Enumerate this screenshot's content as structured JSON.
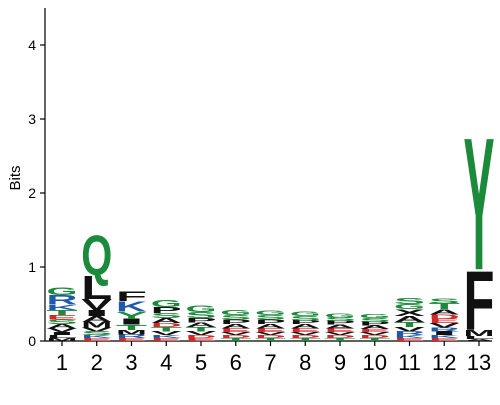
{
  "chart_data": {
    "type": "sequence-logo",
    "title": "",
    "xlabel": "",
    "ylabel": "Bits",
    "ylim": [
      0,
      4.5
    ],
    "yticks": [
      "0",
      "1",
      "2",
      "3",
      "4"
    ],
    "colors": {
      "green": "#1b8a3a",
      "black": "#111111",
      "blue": "#1f5aa8",
      "red": "#d62728",
      "axis": "#000000"
    },
    "residue_colors": {
      "A": "black",
      "V": "black",
      "L": "black",
      "I": "black",
      "P": "black",
      "W": "black",
      "F": "black",
      "M": "black",
      "G": "green",
      "S": "green",
      "T": "green",
      "Y": "green",
      "C": "green",
      "Q": "green",
      "N": "green",
      "K": "blue",
      "R": "blue",
      "H": "blue",
      "D": "red",
      "E": "red"
    },
    "positions": [
      {
        "label": "1",
        "stack": [
          [
            "M",
            0.04
          ],
          [
            "L",
            0.04
          ],
          [
            "I",
            0.04
          ],
          [
            "V",
            0.05
          ],
          [
            "A",
            0.06
          ],
          [
            "S",
            0.06
          ],
          [
            "E",
            0.06
          ],
          [
            "T",
            0.07
          ],
          [
            "K",
            0.07
          ],
          [
            "R",
            0.13
          ],
          [
            "G",
            0.11
          ]
        ]
      },
      {
        "label": "2",
        "stack": [
          [
            "E",
            0.04
          ],
          [
            "K",
            0.04
          ],
          [
            "S",
            0.05
          ],
          [
            "V",
            0.05
          ],
          [
            "M",
            0.08
          ],
          [
            "A",
            0.08
          ],
          [
            "I",
            0.08
          ],
          [
            "V",
            0.15
          ],
          [
            "L",
            0.32
          ],
          [
            "Q",
            0.55
          ]
        ]
      },
      {
        "label": "3",
        "stack": [
          [
            "E",
            0.04
          ],
          [
            "R",
            0.05
          ],
          [
            "M",
            0.06
          ],
          [
            "T",
            0.07
          ],
          [
            "I",
            0.08
          ],
          [
            "Y",
            0.1
          ],
          [
            "K",
            0.14
          ],
          [
            "F",
            0.13
          ]
        ]
      },
      {
        "label": "4",
        "stack": [
          [
            "E",
            0.04
          ],
          [
            "K",
            0.04
          ],
          [
            "V",
            0.05
          ],
          [
            "T",
            0.06
          ],
          [
            "D",
            0.05
          ],
          [
            "A",
            0.07
          ],
          [
            "S",
            0.07
          ],
          [
            "P",
            0.08
          ],
          [
            "G",
            0.1
          ]
        ]
      },
      {
        "label": "5",
        "stack": [
          [
            "E",
            0.04
          ],
          [
            "D",
            0.04
          ],
          [
            "V",
            0.05
          ],
          [
            "T",
            0.06
          ],
          [
            "A",
            0.06
          ],
          [
            "P",
            0.06
          ],
          [
            "S",
            0.08
          ],
          [
            "G",
            0.09
          ]
        ]
      },
      {
        "label": "6",
        "stack": [
          [
            "T",
            0.04
          ],
          [
            "D",
            0.04
          ],
          [
            "V",
            0.04
          ],
          [
            "E",
            0.05
          ],
          [
            "A",
            0.06
          ],
          [
            "P",
            0.06
          ],
          [
            "S",
            0.06
          ],
          [
            "G",
            0.07
          ]
        ]
      },
      {
        "label": "7",
        "stack": [
          [
            "T",
            0.04
          ],
          [
            "D",
            0.04
          ],
          [
            "V",
            0.04
          ],
          [
            "E",
            0.05
          ],
          [
            "A",
            0.06
          ],
          [
            "P",
            0.06
          ],
          [
            "S",
            0.06
          ],
          [
            "G",
            0.06
          ]
        ]
      },
      {
        "label": "8",
        "stack": [
          [
            "T",
            0.04
          ],
          [
            "D",
            0.04
          ],
          [
            "V",
            0.04
          ],
          [
            "E",
            0.05
          ],
          [
            "A",
            0.06
          ],
          [
            "P",
            0.05
          ],
          [
            "S",
            0.06
          ],
          [
            "G",
            0.06
          ]
        ]
      },
      {
        "label": "9",
        "stack": [
          [
            "T",
            0.04
          ],
          [
            "D",
            0.04
          ],
          [
            "V",
            0.04
          ],
          [
            "E",
            0.05
          ],
          [
            "A",
            0.05
          ],
          [
            "P",
            0.05
          ],
          [
            "S",
            0.05
          ],
          [
            "G",
            0.05
          ]
        ]
      },
      {
        "label": "10",
        "stack": [
          [
            "T",
            0.04
          ],
          [
            "D",
            0.04
          ],
          [
            "V",
            0.04
          ],
          [
            "E",
            0.04
          ],
          [
            "A",
            0.05
          ],
          [
            "P",
            0.05
          ],
          [
            "S",
            0.05
          ],
          [
            "G",
            0.05
          ]
        ]
      },
      {
        "label": "11",
        "stack": [
          [
            "E",
            0.04
          ],
          [
            "K",
            0.04
          ],
          [
            "R",
            0.05
          ],
          [
            "V",
            0.06
          ],
          [
            "T",
            0.07
          ],
          [
            "A",
            0.08
          ],
          [
            "X",
            0.09
          ],
          [
            "G",
            0.07
          ],
          [
            "S",
            0.08
          ]
        ]
      },
      {
        "label": "12",
        "stack": [
          [
            "E",
            0.04
          ],
          [
            "K",
            0.04
          ],
          [
            "I",
            0.05
          ],
          [
            "R",
            0.05
          ],
          [
            "V",
            0.06
          ],
          [
            "E",
            0.06
          ],
          [
            "D",
            0.06
          ],
          [
            "A",
            0.07
          ],
          [
            "T",
            0.08
          ],
          [
            "S",
            0.07
          ]
        ]
      },
      {
        "label": "13",
        "stack": [
          [
            "A",
            0.03
          ],
          [
            "L",
            0.04
          ],
          [
            "M",
            0.08
          ],
          [
            "F",
            0.82
          ],
          [
            "Y",
            1.84
          ]
        ]
      }
    ]
  }
}
